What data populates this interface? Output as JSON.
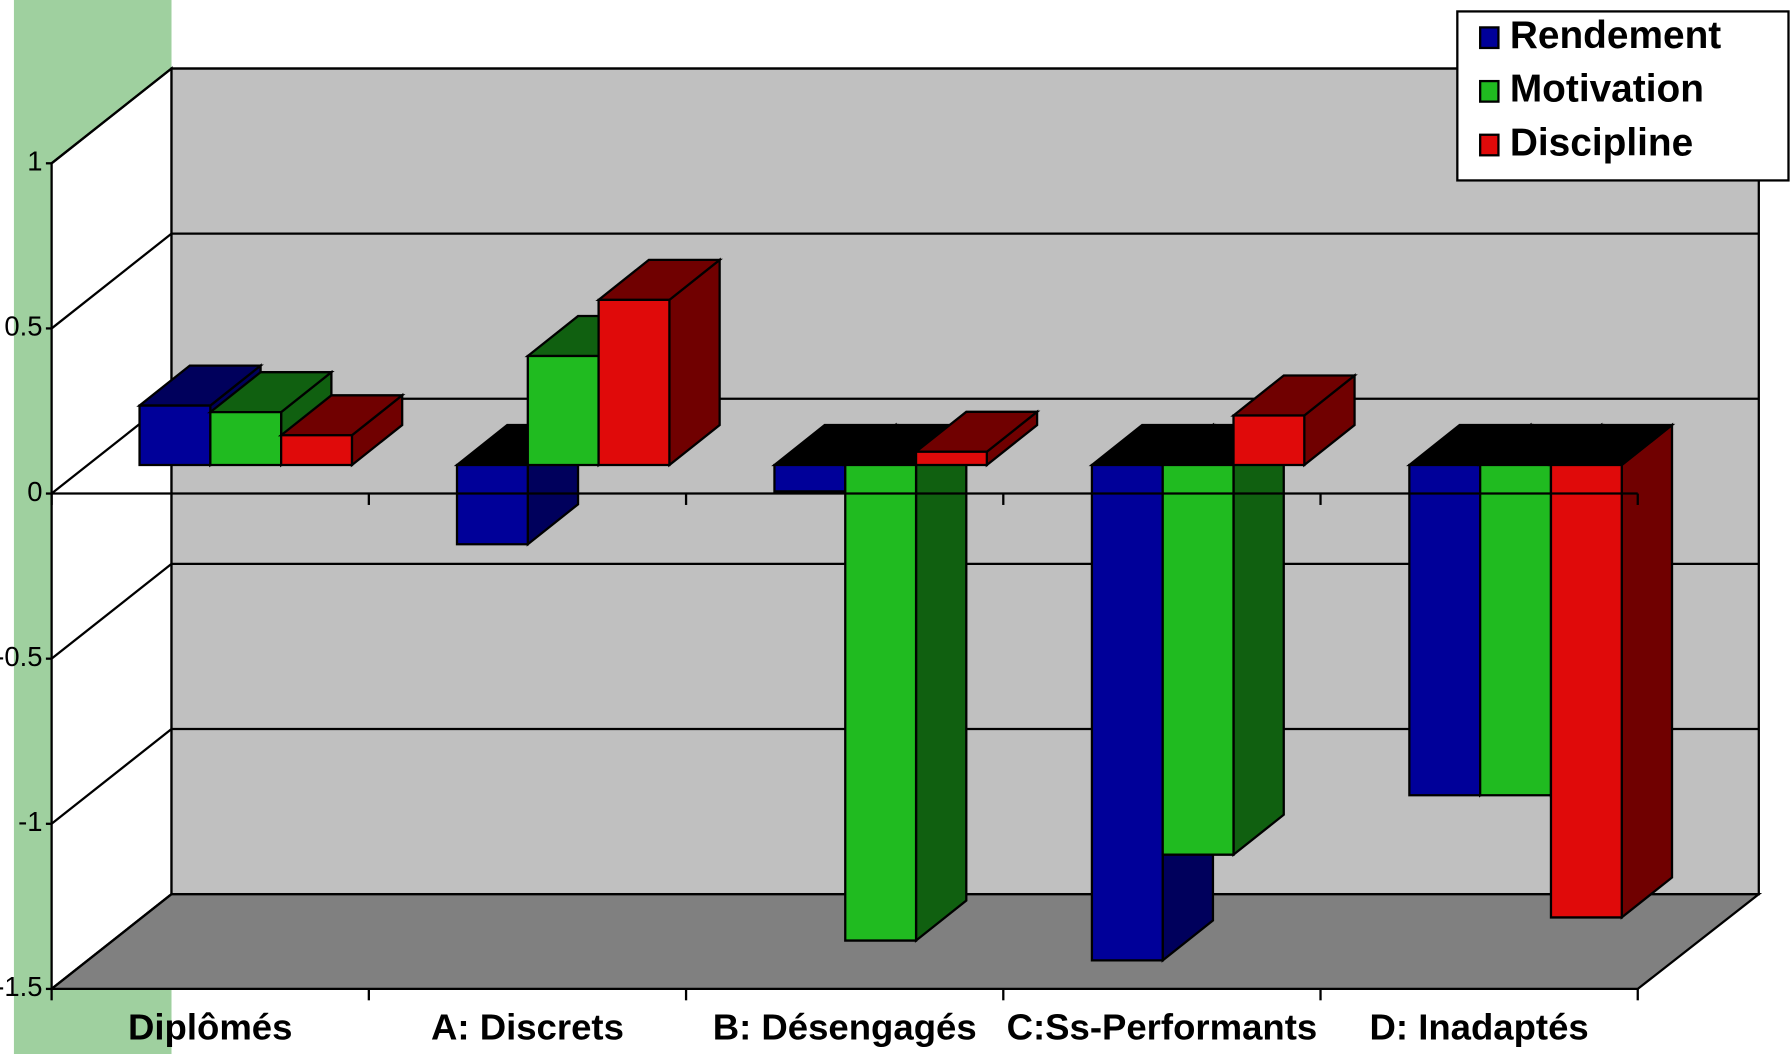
{
  "chart_data": {
    "type": "bar3d",
    "categories": [
      "Diplômés",
      "A: Discrets",
      "B: Désengagés",
      "C:Ss-Performants",
      "D: Inadaptés"
    ],
    "series": [
      {
        "name": "Rendement",
        "color": "#000099",
        "side": "#00005c",
        "values": [
          0.18,
          -0.24,
          -0.08,
          -1.5,
          -1.0
        ]
      },
      {
        "name": "Motivation",
        "color": "#20bb20",
        "side": "#106010",
        "values": [
          0.16,
          0.33,
          -1.44,
          -1.18,
          -1.0
        ]
      },
      {
        "name": "Discipline",
        "color": "#e00a0a",
        "side": "#700000",
        "values": [
          0.09,
          0.5,
          0.04,
          0.15,
          -1.37
        ]
      }
    ],
    "ylim": [
      -1.5,
      1
    ],
    "yticks": [
      1,
      0.5,
      0,
      -0.5,
      -1,
      -1.5
    ],
    "grid": true,
    "legend": "top-right"
  }
}
